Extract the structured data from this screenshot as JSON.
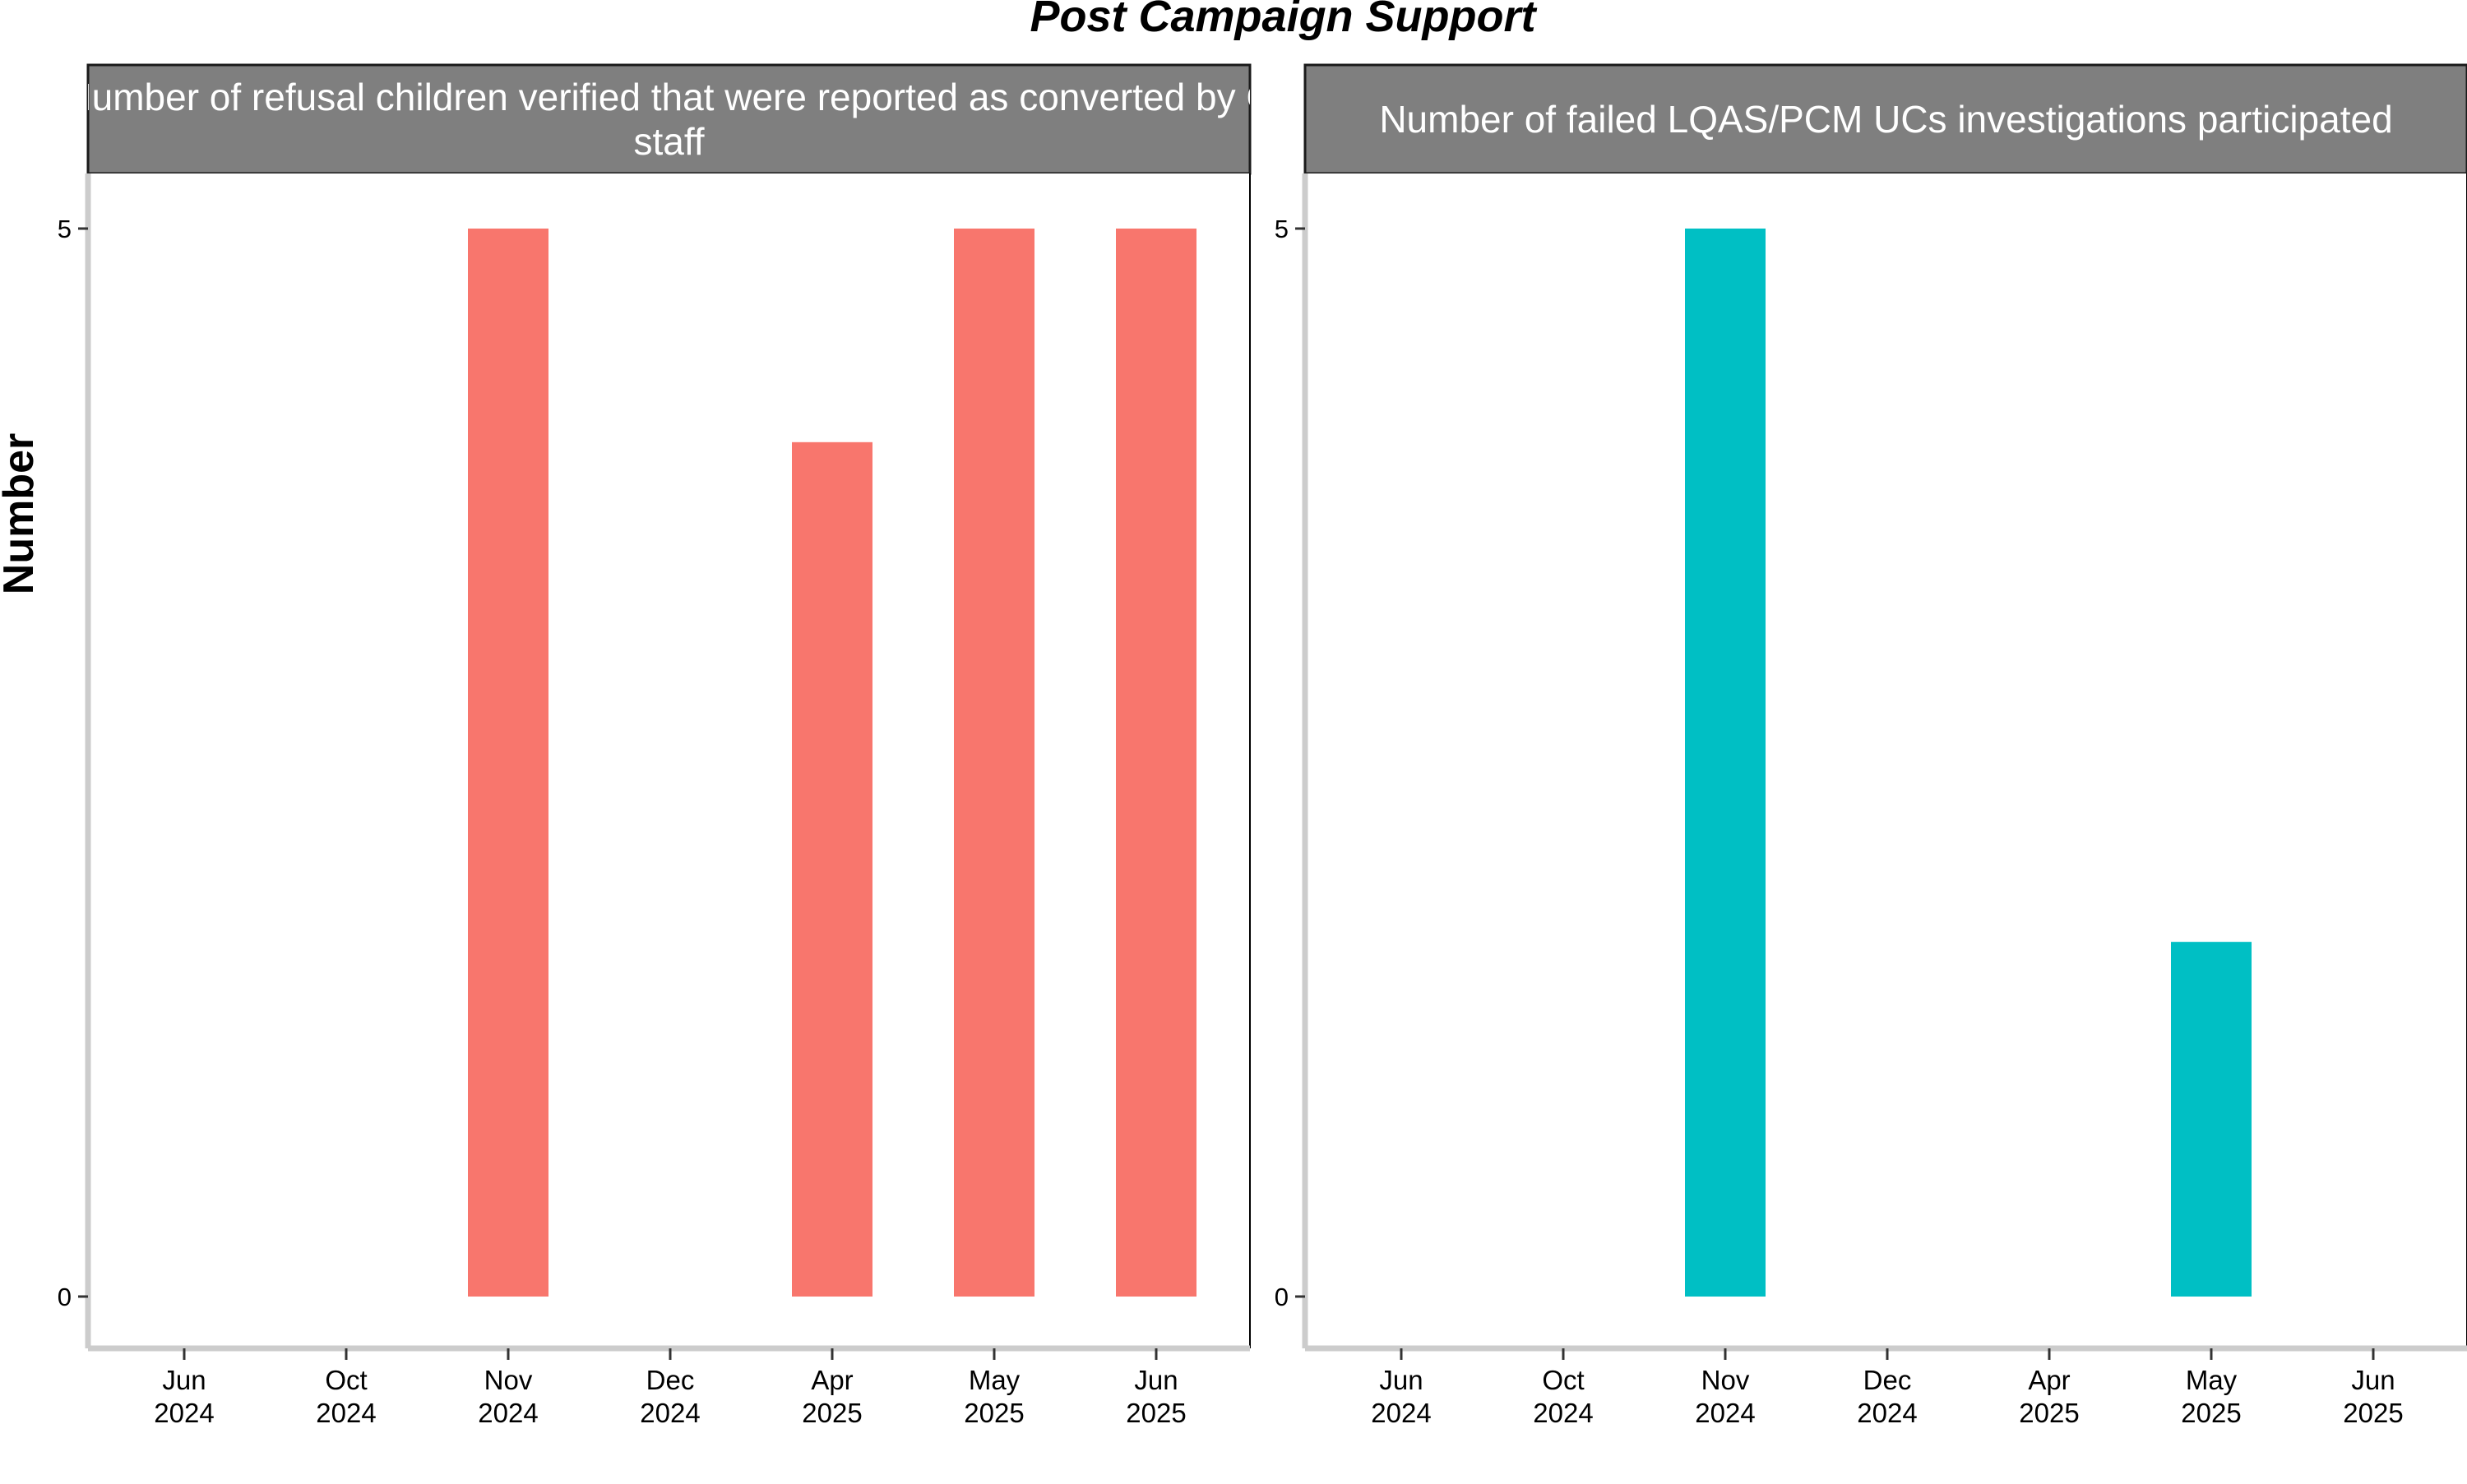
{
  "chart_data": {
    "type": "bar",
    "title": "Post Campaign Support",
    "ylabel": "Number",
    "ylim": [
      0,
      5
    ],
    "y_ticks": [
      0,
      5
    ],
    "grid": false,
    "categories": [
      {
        "month": "Jun",
        "year": "2024"
      },
      {
        "month": "Oct",
        "year": "2024"
      },
      {
        "month": "Nov",
        "year": "2024"
      },
      {
        "month": "Dec",
        "year": "2024"
      },
      {
        "month": "Apr",
        "year": "2025"
      },
      {
        "month": "May",
        "year": "2025"
      },
      {
        "month": "Jun",
        "year": "2025"
      }
    ],
    "panels": [
      {
        "title_lines": [
          "Number of refusal children verified that were reported as converted by C",
          "staff"
        ],
        "color": "#F8766D",
        "values": [
          null,
          null,
          5,
          null,
          4,
          5,
          5
        ]
      },
      {
        "title_lines": [
          "Number of failed LQAS/PCM UCs investigations participated"
        ],
        "color": "#00BFC4",
        "values": [
          null,
          null,
          5,
          null,
          null,
          1.66,
          null
        ]
      }
    ]
  }
}
